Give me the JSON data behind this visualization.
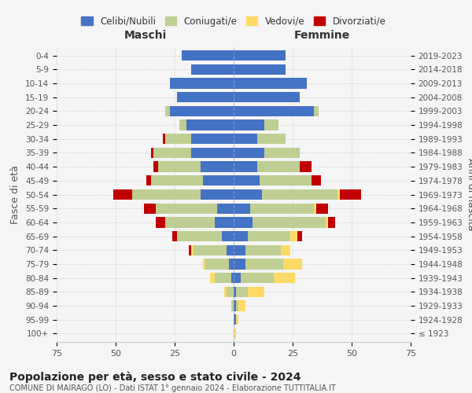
{
  "age_groups": [
    "100+",
    "95-99",
    "90-94",
    "85-89",
    "80-84",
    "75-79",
    "70-74",
    "65-69",
    "60-64",
    "55-59",
    "50-54",
    "45-49",
    "40-44",
    "35-39",
    "30-34",
    "25-29",
    "20-24",
    "15-19",
    "10-14",
    "5-9",
    "0-4"
  ],
  "birth_years": [
    "≤ 1923",
    "1924-1928",
    "1929-1933",
    "1934-1938",
    "1939-1943",
    "1944-1948",
    "1949-1953",
    "1954-1958",
    "1959-1963",
    "1964-1968",
    "1969-1973",
    "1974-1978",
    "1979-1983",
    "1984-1988",
    "1989-1993",
    "1994-1998",
    "1999-2003",
    "2004-2008",
    "2009-2013",
    "2014-2018",
    "2019-2023"
  ],
  "male": {
    "celibe": [
      0,
      0,
      0,
      0,
      1,
      2,
      3,
      5,
      8,
      7,
      14,
      13,
      14,
      18,
      18,
      20,
      27,
      24,
      27,
      18,
      22
    ],
    "coniugato": [
      0,
      0,
      1,
      3,
      7,
      10,
      14,
      19,
      21,
      26,
      29,
      22,
      18,
      16,
      11,
      3,
      2,
      0,
      0,
      0,
      0
    ],
    "vedovo": [
      0,
      0,
      0,
      1,
      2,
      1,
      1,
      0,
      0,
      0,
      0,
      0,
      0,
      0,
      0,
      0,
      0,
      0,
      0,
      0,
      0
    ],
    "divorziato": [
      0,
      0,
      0,
      0,
      0,
      0,
      1,
      2,
      4,
      5,
      8,
      2,
      2,
      1,
      1,
      0,
      0,
      0,
      0,
      0,
      0
    ]
  },
  "female": {
    "nubile": [
      0,
      1,
      1,
      1,
      3,
      5,
      5,
      6,
      8,
      7,
      12,
      11,
      10,
      13,
      10,
      13,
      34,
      28,
      31,
      22,
      22
    ],
    "coniugata": [
      0,
      0,
      1,
      5,
      14,
      16,
      15,
      18,
      31,
      27,
      32,
      22,
      18,
      15,
      12,
      6,
      2,
      0,
      0,
      0,
      0
    ],
    "vedova": [
      1,
      1,
      3,
      7,
      9,
      8,
      4,
      3,
      1,
      1,
      1,
      0,
      0,
      0,
      0,
      0,
      0,
      0,
      0,
      0,
      0
    ],
    "divorziata": [
      0,
      0,
      0,
      0,
      0,
      0,
      0,
      2,
      3,
      5,
      9,
      4,
      5,
      0,
      0,
      0,
      0,
      0,
      0,
      0,
      0
    ]
  },
  "colors": {
    "celibe": "#4472C4",
    "coniugato": "#BFCE93",
    "vedovo": "#FFD966",
    "divorziato": "#C00000"
  },
  "title": "Popolazione per età, sesso e stato civile - 2024",
  "subtitle": "COMUNE DI MAIRAGO (LO) - Dati ISTAT 1° gennaio 2024 - Elaborazione TUTTITALIA.IT",
  "xlabel_left": "Maschi",
  "xlabel_right": "Femmine",
  "ylabel_left": "Fasce di età",
  "ylabel_right": "Anni di nascita",
  "xlim": 75,
  "legend_labels": [
    "Celibi/Nubili",
    "Coniugati/e",
    "Vedovi/e",
    "Divorziati/e"
  ],
  "background_color": "#f5f5f5"
}
